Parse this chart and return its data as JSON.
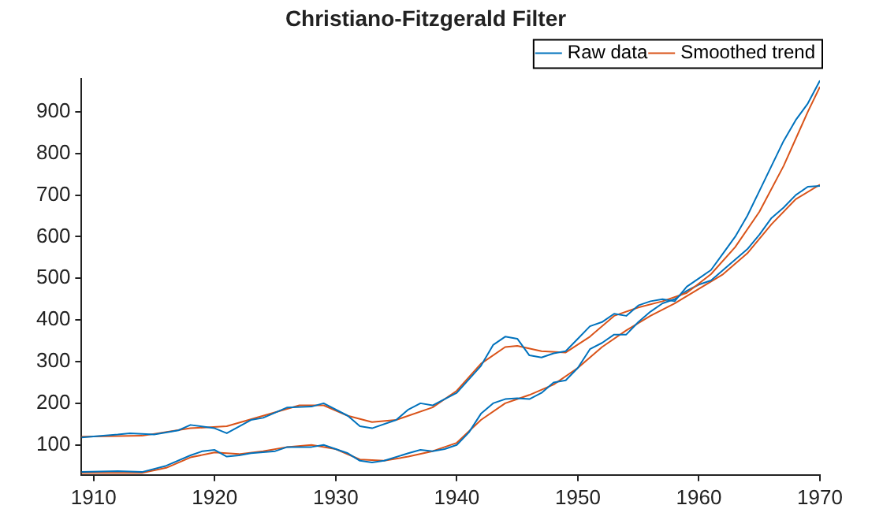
{
  "chart_data": {
    "type": "line",
    "title": "Christiano-Fitzgerald Filter",
    "xlim": [
      1909,
      1970
    ],
    "xticks": [
      1910,
      1920,
      1930,
      1940,
      1950,
      1960,
      1970
    ],
    "ylim": [
      28,
      980
    ],
    "yticks": [
      100,
      200,
      300,
      400,
      500,
      600,
      700,
      800,
      900
    ],
    "grid": false,
    "legend": "top right",
    "marker": "none",
    "line_style": "solid",
    "series": [
      {
        "name": "Raw data",
        "color": "#0072bd",
        "x": [
          1909,
          1912,
          1913,
          1915,
          1917,
          1918,
          1920,
          1921,
          1923,
          1924,
          1926,
          1928,
          1929,
          1931,
          1932,
          1933,
          1935,
          1936,
          1937,
          1938,
          1940,
          1942,
          1943,
          1944,
          1945,
          1946,
          1947,
          1948,
          1949,
          1950,
          1951,
          1952,
          1953,
          1954,
          1955,
          1956,
          1957,
          1958,
          1959,
          1960,
          1961,
          1962,
          1963,
          1964,
          1965,
          1966,
          1967,
          1968,
          1969,
          1970
        ],
        "values": [
          118,
          125,
          128,
          125,
          135,
          148,
          140,
          128,
          160,
          165,
          190,
          192,
          200,
          170,
          145,
          140,
          160,
          185,
          200,
          195,
          225,
          290,
          340,
          360,
          355,
          315,
          310,
          320,
          325,
          355,
          385,
          395,
          415,
          410,
          435,
          445,
          450,
          445,
          480,
          500,
          520,
          560,
          600,
          650,
          710,
          770,
          830,
          880,
          920,
          975
        ]
      },
      {
        "name": "Smoothed trend",
        "color": "#d95319",
        "x": [
          1909,
          1914,
          1918,
          1921,
          1924,
          1927,
          1929,
          1931,
          1933,
          1935,
          1938,
          1940,
          1942,
          1944,
          1945,
          1947,
          1949,
          1951,
          1953,
          1955,
          1957,
          1959,
          1961,
          1963,
          1965,
          1967,
          1969,
          1970
        ],
        "values": [
          120,
          122,
          140,
          145,
          170,
          195,
          195,
          170,
          155,
          160,
          190,
          230,
          295,
          335,
          338,
          325,
          322,
          360,
          410,
          430,
          445,
          465,
          510,
          575,
          660,
          770,
          900,
          960
        ]
      },
      {
        "color": "#0072bd",
        "x": [
          1909,
          1912,
          1914,
          1916,
          1918,
          1919,
          1920,
          1921,
          1922,
          1923,
          1925,
          1926,
          1928,
          1929,
          1931,
          1932,
          1933,
          1934,
          1936,
          1937,
          1938,
          1939,
          1940,
          1941,
          1942,
          1943,
          1944,
          1945,
          1946,
          1947,
          1948,
          1949,
          1950,
          1951,
          1952,
          1953,
          1954,
          1955,
          1956,
          1957,
          1958,
          1959,
          1960,
          1961,
          1962,
          1963,
          1964,
          1965,
          1966,
          1967,
          1968,
          1969,
          1970
        ],
        "values": [
          35,
          37,
          35,
          50,
          75,
          85,
          88,
          72,
          75,
          80,
          85,
          95,
          95,
          100,
          80,
          62,
          58,
          62,
          80,
          88,
          85,
          90,
          100,
          130,
          175,
          200,
          210,
          212,
          210,
          225,
          250,
          255,
          285,
          330,
          345,
          365,
          365,
          395,
          420,
          440,
          450,
          470,
          485,
          495,
          520,
          545,
          570,
          605,
          645,
          670,
          700,
          720,
          722
        ]
      },
      {
        "color": "#d95319",
        "x": [
          1909,
          1914,
          1916,
          1918,
          1920,
          1922,
          1924,
          1926,
          1928,
          1930,
          1932,
          1934,
          1936,
          1938,
          1940,
          1942,
          1944,
          1946,
          1948,
          1950,
          1952,
          1954,
          1956,
          1958,
          1960,
          1962,
          1964,
          1966,
          1968,
          1970
        ],
        "values": [
          33,
          33,
          45,
          70,
          82,
          78,
          85,
          95,
          100,
          90,
          65,
          62,
          72,
          85,
          105,
          160,
          200,
          220,
          245,
          285,
          335,
          375,
          410,
          440,
          475,
          510,
          560,
          630,
          690,
          725
        ]
      }
    ]
  }
}
